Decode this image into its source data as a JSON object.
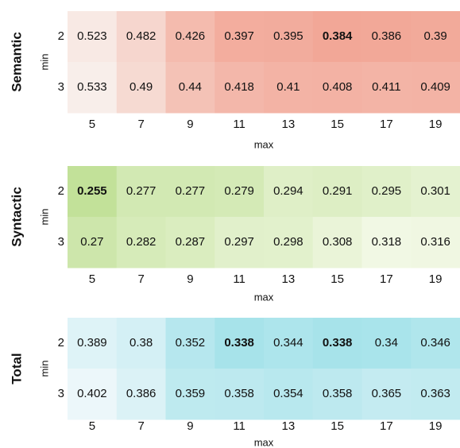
{
  "chart_data": [
    {
      "type": "heatmap",
      "title": "Semantic",
      "xlabel": "max",
      "ylabel": "min",
      "x": [
        5,
        7,
        9,
        11,
        13,
        15,
        17,
        19
      ],
      "y": [
        2,
        3
      ],
      "values": [
        [
          0.523,
          0.482,
          0.426,
          0.397,
          0.395,
          0.384,
          0.386,
          0.39
        ],
        [
          0.533,
          0.49,
          0.44,
          0.418,
          0.41,
          0.408,
          0.411,
          0.409
        ]
      ],
      "colors": [
        "#f8eeea",
        "#f2a797"
      ]
    },
    {
      "type": "heatmap",
      "title": "Syntactic",
      "xlabel": "max",
      "ylabel": "min",
      "x": [
        5,
        7,
        9,
        11,
        13,
        15,
        17,
        19
      ],
      "y": [
        2,
        3
      ],
      "values": [
        [
          0.255,
          0.277,
          0.277,
          0.279,
          0.294,
          0.291,
          0.295,
          0.301
        ],
        [
          0.27,
          0.282,
          0.287,
          0.297,
          0.298,
          0.308,
          0.318,
          0.316
        ]
      ],
      "colors": [
        "#f1f8e4",
        "#c2e199"
      ]
    },
    {
      "type": "heatmap",
      "title": "Total",
      "xlabel": "max",
      "ylabel": "min",
      "x": [
        5,
        7,
        9,
        11,
        13,
        15,
        17,
        19
      ],
      "y": [
        2,
        3
      ],
      "values": [
        [
          0.389,
          0.38,
          0.352,
          0.338,
          0.344,
          0.338,
          0.34,
          0.346
        ],
        [
          0.402,
          0.386,
          0.359,
          0.358,
          0.354,
          0.358,
          0.365,
          0.363
        ]
      ],
      "colors": [
        "#ecf7fa",
        "#a7e3ea"
      ]
    }
  ]
}
